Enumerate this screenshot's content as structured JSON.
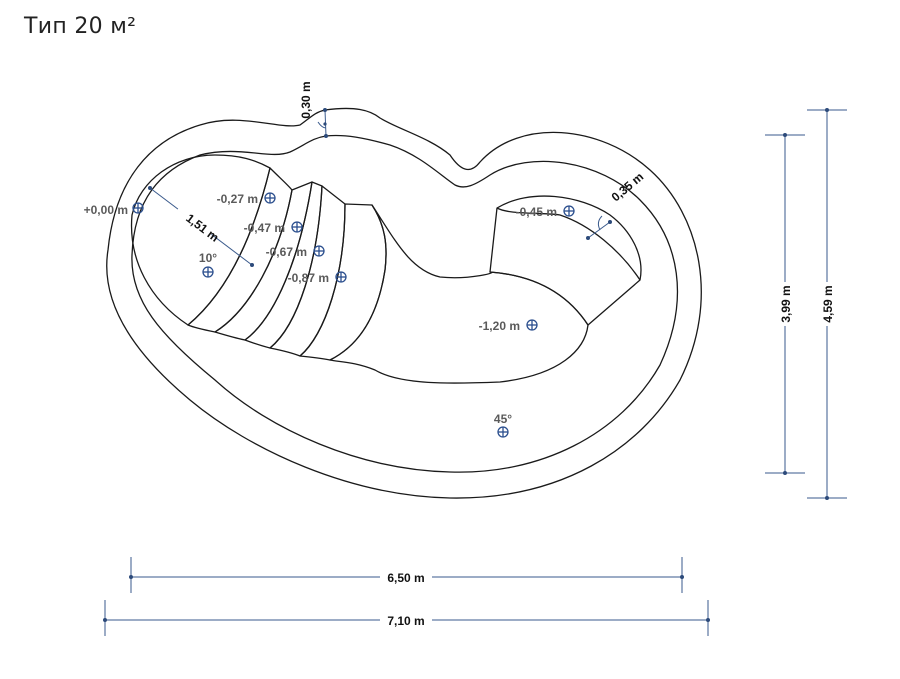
{
  "title": "Тип 20 м²",
  "dimensions": {
    "width_inner": "6,50 m",
    "width_outer": "7,10 m",
    "depth_inner": "3,99 m",
    "depth_outer": "4,59 m",
    "rim_top": "0,30 m",
    "rim_right": "0,35 m",
    "diagonal": "1,51 m"
  },
  "levels": {
    "l000": "+0,00 m",
    "l027": "-0,27 m",
    "l047": "-0,47 m",
    "l067": "-0,67 m",
    "l087": "-0,87 m",
    "l045": "-0,45 m",
    "l120": "-1,20 m",
    "a10": "10°",
    "a45": "45°"
  },
  "colors": {
    "dimension": "#3a5a8c",
    "marker": "#2b4f8e",
    "outline": "#1a1a1a"
  }
}
